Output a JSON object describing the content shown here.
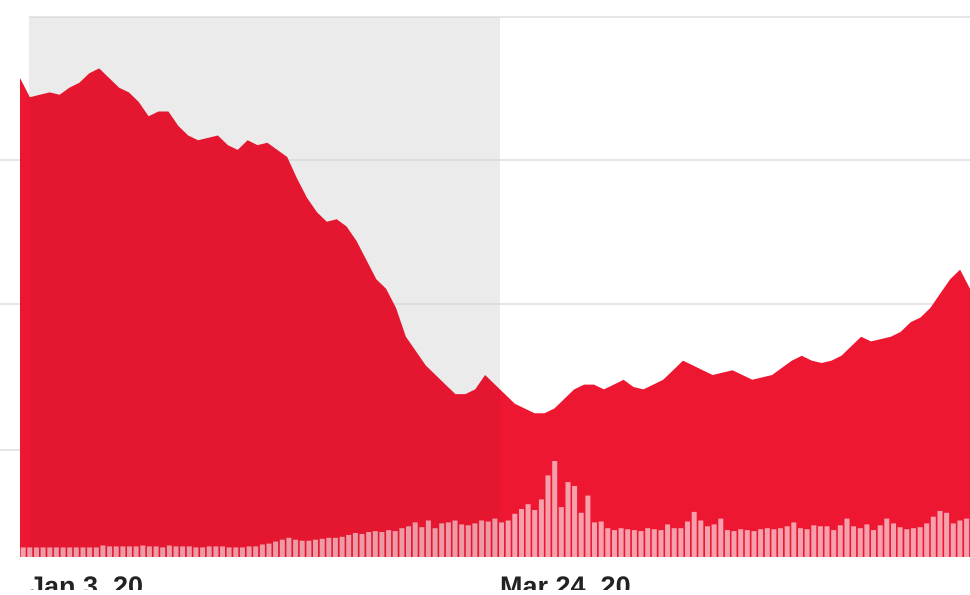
{
  "chart_data": {
    "type": "area",
    "title": "",
    "xlabel": "",
    "ylabel": "",
    "x_tick_labels": [
      "Jan 3, 20",
      "Mar 24, 20"
    ],
    "shaded_range": {
      "start": "Jan 3, 20",
      "end": "Mar 24, 20"
    },
    "grid": "horizontal",
    "legend": "none",
    "colors": {
      "area": "#ee1731",
      "volume": "#f5a0ad",
      "shaded_region": "#f4f4f4",
      "gridline": "#e6e6e6",
      "tick_text": "#222222"
    },
    "ylim": [
      0,
      100
    ],
    "series": [
      {
        "values": [
          100,
          96,
          96.5,
          97,
          96.5,
          98,
          99,
          101,
          102,
          100,
          98,
          97,
          95,
          92,
          93,
          93,
          90,
          88,
          87,
          87.5,
          88,
          86,
          85,
          87,
          86,
          86.5,
          85,
          83.5,
          79,
          75,
          72,
          70,
          70.5,
          69,
          66,
          62,
          58,
          56,
          52,
          46,
          43,
          40,
          38,
          36,
          34,
          34,
          35,
          38,
          36,
          34,
          32,
          31,
          30,
          30,
          31,
          33,
          35,
          36,
          36,
          35,
          36,
          37,
          35.5,
          35,
          36,
          37,
          39,
          41,
          40,
          39,
          38,
          38.5,
          39,
          38,
          37,
          37.5,
          38,
          39.5,
          41,
          42,
          41,
          40.5,
          41,
          42,
          44,
          46,
          45,
          45.5,
          46,
          47,
          49,
          50,
          52,
          55,
          58,
          60,
          56
        ]
      },
      {
        "name": "Volume",
        "values": [
          10,
          10,
          10,
          10,
          10,
          10,
          10,
          10,
          10,
          10,
          10,
          10,
          12,
          11,
          11,
          11,
          11,
          11,
          12,
          11,
          11,
          10,
          12,
          11,
          11,
          11,
          10,
          10,
          11,
          11,
          11,
          10,
          10,
          10,
          11,
          11,
          13,
          14,
          16,
          18,
          20,
          18,
          17,
          17,
          18,
          19,
          20,
          20,
          21,
          23,
          25,
          24,
          26,
          27,
          26,
          28,
          27,
          30,
          32,
          36,
          31,
          38,
          30,
          35,
          36,
          38,
          34,
          33,
          35,
          38,
          37,
          40,
          36,
          38,
          45,
          50,
          55,
          49,
          60,
          85,
          100,
          52,
          78,
          74,
          46,
          64,
          36,
          37,
          30,
          28,
          30,
          29,
          28,
          27,
          30,
          29,
          28,
          34,
          30,
          30,
          37,
          47,
          38,
          32,
          34,
          40,
          28,
          27,
          29,
          28,
          27,
          29,
          30,
          29,
          30,
          32,
          36,
          30,
          29,
          33,
          32,
          32,
          28,
          33,
          40,
          32,
          30,
          34,
          28,
          33,
          40,
          35,
          31,
          29,
          30,
          31,
          35,
          42,
          48,
          46,
          35,
          38,
          40
        ]
      }
    ]
  }
}
